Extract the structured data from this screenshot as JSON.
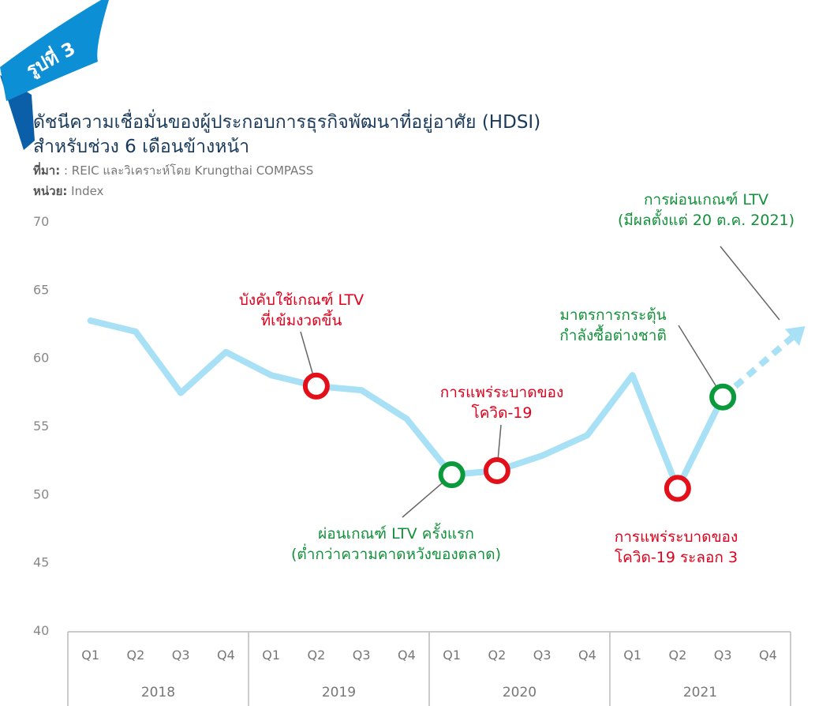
{
  "badge": "รูปที่ 3",
  "title_line1": "ดัชนีความเชื่อมั่นของผู้ประกอบการธุรกิจพัฒนาที่อยู่อาศัย (HDSI)",
  "title_line2": "สำหรับช่วง 6 เดือนข้างหน้า",
  "source_label": "ที่มา:",
  "source_text": ": REIC และวิเคราะห์โดย Krungthai COMPASS",
  "unit_label": "หน่วย:",
  "unit_text": "Index",
  "colors": {
    "line": "#a8e1f5",
    "red_marker": "#e3101a",
    "green_marker": "#0a9a3c",
    "red_text": "#e0001b",
    "green_text": "#12913a",
    "title": "#1a3a5c",
    "badge": "#0d8fd6"
  },
  "chart_data": {
    "type": "line",
    "title": "ดัชนีความเชื่อมั่นของผู้ประกอบการธุรกิจพัฒนาที่อยู่อาศัย (HDSI) สำหรับช่วง 6 เดือนข้างหน้า",
    "ylabel": "Index",
    "ylim": [
      40,
      70
    ],
    "yticks": [
      40,
      45,
      50,
      55,
      60,
      65,
      70
    ],
    "quarters": [
      "Q1",
      "Q2",
      "Q3",
      "Q4",
      "Q1",
      "Q2",
      "Q3",
      "Q4",
      "Q1",
      "Q2",
      "Q3",
      "Q4",
      "Q1",
      "Q2",
      "Q3",
      "Q4"
    ],
    "years": [
      "2018",
      "2019",
      "2020",
      "2021"
    ],
    "values": [
      62.7,
      61.9,
      57.4,
      60.4,
      58.7,
      57.9,
      57.6,
      55.5,
      51.4,
      51.7,
      52.8,
      54.3,
      58.7,
      50.4,
      57.1,
      null
    ],
    "projection": {
      "from_index": 14,
      "to_index": 16,
      "to_value": 62.3,
      "style": "dashed-arrow"
    },
    "markers": [
      {
        "index": 5,
        "type": "red"
      },
      {
        "index": 8,
        "type": "green"
      },
      {
        "index": 9,
        "type": "red"
      },
      {
        "index": 13,
        "type": "red"
      },
      {
        "index": 14,
        "type": "green"
      }
    ],
    "annotations": [
      {
        "lines": [
          "บังคับใช้เกณฑ์ LTV",
          "ที่เข้มงวดขึ้น"
        ],
        "color": "red",
        "point_index": 5
      },
      {
        "lines": [
          "การแพร่ระบาดของ",
          "โควิด-19"
        ],
        "color": "red",
        "point_index": 9
      },
      {
        "lines": [
          "ผ่อนเกณฑ์ LTV ครั้งแรก",
          "(ต่ำกว่าความคาดหวังของตลาด)"
        ],
        "color": "green",
        "point_index": 8
      },
      {
        "lines": [
          "การแพร่ระบาดของ",
          "โควิด-19 ระลอก 3"
        ],
        "color": "red",
        "point_index": 13
      },
      {
        "lines": [
          "มาตรการกระตุ้น",
          "กำลังซื้อต่างชาติ"
        ],
        "color": "green",
        "point_index": 14
      },
      {
        "lines": [
          "การผ่อนเกณฑ์ LTV",
          "(มีผลตั้งแต่ 20 ต.ค. 2021)"
        ],
        "color": "green",
        "point_index": 15
      }
    ]
  }
}
